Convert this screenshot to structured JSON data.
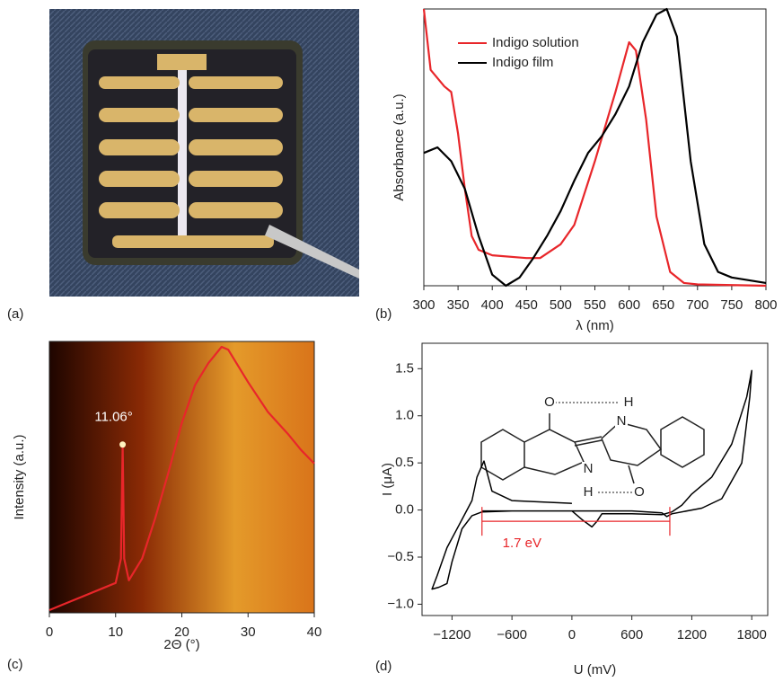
{
  "image_panel": {
    "label": "(a)"
  },
  "chart_data": [
    {
      "type": "line",
      "panel_label": "(b)",
      "xlabel": "λ (nm)",
      "ylabel": "Absorbance (a.u.)",
      "xlim": [
        300,
        800
      ],
      "xticks": [
        300,
        350,
        400,
        450,
        500,
        550,
        600,
        650,
        700,
        750,
        800
      ],
      "ylim": [
        0,
        1
      ],
      "legend": "upper left",
      "series": [
        {
          "name": "Indigo solution",
          "color": "#e8262a",
          "x": [
            300,
            310,
            330,
            340,
            350,
            360,
            370,
            380,
            400,
            450,
            470,
            500,
            520,
            550,
            580,
            600,
            610,
            625,
            640,
            660,
            680,
            700,
            800
          ],
          "values": [
            1.0,
            0.78,
            0.72,
            0.7,
            0.55,
            0.35,
            0.18,
            0.13,
            0.11,
            0.1,
            0.1,
            0.15,
            0.22,
            0.45,
            0.7,
            0.88,
            0.85,
            0.6,
            0.25,
            0.05,
            0.01,
            0.005,
            0
          ]
        },
        {
          "name": "Indigo film",
          "color": "#000000",
          "x": [
            300,
            320,
            340,
            360,
            380,
            400,
            420,
            440,
            460,
            480,
            500,
            520,
            540,
            560,
            580,
            600,
            620,
            640,
            655,
            670,
            690,
            710,
            730,
            750,
            800
          ],
          "values": [
            0.48,
            0.5,
            0.45,
            0.35,
            0.18,
            0.04,
            0.0,
            0.03,
            0.1,
            0.18,
            0.27,
            0.38,
            0.48,
            0.54,
            0.62,
            0.72,
            0.88,
            0.98,
            1.0,
            0.9,
            0.45,
            0.15,
            0.05,
            0.03,
            0.01
          ]
        }
      ]
    },
    {
      "type": "line",
      "panel_label": "(c)",
      "xlabel": "2Θ (°)",
      "ylabel": "Intensity (a.u.)",
      "xlim": [
        0,
        40
      ],
      "xticks": [
        0,
        10,
        20,
        30,
        40
      ],
      "ylim": [
        0,
        1
      ],
      "annotations": [
        {
          "text": "11.06°",
          "x": 11.06,
          "y": 0.62
        }
      ],
      "series": [
        {
          "color": "#e8262a",
          "x": [
            0,
            2,
            5,
            8,
            10,
            10.8,
            11.06,
            11.3,
            12,
            14,
            16,
            18,
            20,
            22,
            24,
            26,
            27,
            30,
            33,
            36,
            38,
            40
          ],
          "values": [
            0.01,
            0.03,
            0.06,
            0.09,
            0.11,
            0.2,
            0.62,
            0.2,
            0.12,
            0.2,
            0.35,
            0.52,
            0.7,
            0.84,
            0.92,
            0.98,
            0.97,
            0.85,
            0.74,
            0.66,
            0.6,
            0.55
          ]
        }
      ]
    },
    {
      "type": "line",
      "panel_label": "(d)",
      "xlabel": "U (mV)",
      "ylabel": "I (μA)",
      "xlim": [
        -1500,
        1960
      ],
      "xticks": [
        {
          "value": -1200,
          "label": "−1200"
        },
        {
          "value": -600,
          "label": "−600"
        },
        0,
        600,
        1200,
        1800
      ],
      "ylim": [
        -1.12,
        1.77
      ],
      "yticks": [
        {
          "value": -1.0,
          "label": "−1.0"
        },
        {
          "value": -0.5,
          "label": "−0.5"
        },
        {
          "value": 0.0,
          "label": "0.0"
        },
        0.5,
        {
          "value": 1.0,
          "label": "1.0"
        },
        1.5
      ],
      "annotations": [
        {
          "text": "1.7 eV",
          "x": [
            -900,
            980
          ],
          "y": -0.12,
          "color": "#e8262a"
        }
      ],
      "molecule_atoms": [
        "O",
        "H",
        "N",
        "N",
        "H",
        "O"
      ],
      "series": [
        {
          "color": "#000000",
          "x": [
            0,
            -600,
            -800,
            -880,
            -950,
            -1000,
            -1100,
            -1250,
            -1350,
            -1400,
            -1330,
            -1250,
            -1200,
            -1100,
            -1000,
            -900,
            -600,
            0,
            100,
            200,
            250,
            300,
            600,
            900,
            1000,
            1100,
            1200,
            1400,
            1600,
            1750,
            1800,
            1780,
            1700,
            1500,
            1300,
            1000,
            950,
            900,
            600,
            0,
            -900
          ],
          "values": [
            0.07,
            0.1,
            0.2,
            0.52,
            0.35,
            0.1,
            -0.1,
            -0.4,
            -0.7,
            -0.84,
            -0.82,
            -0.78,
            -0.55,
            -0.2,
            -0.06,
            -0.02,
            -0.01,
            -0.01,
            -0.1,
            -0.18,
            -0.12,
            -0.04,
            -0.04,
            -0.05,
            -0.02,
            0.05,
            0.17,
            0.35,
            0.7,
            1.2,
            1.48,
            1.2,
            0.5,
            0.12,
            0.02,
            -0.04,
            -0.07,
            -0.03,
            -0.01,
            -0.01,
            -0.01
          ]
        }
      ]
    }
  ]
}
